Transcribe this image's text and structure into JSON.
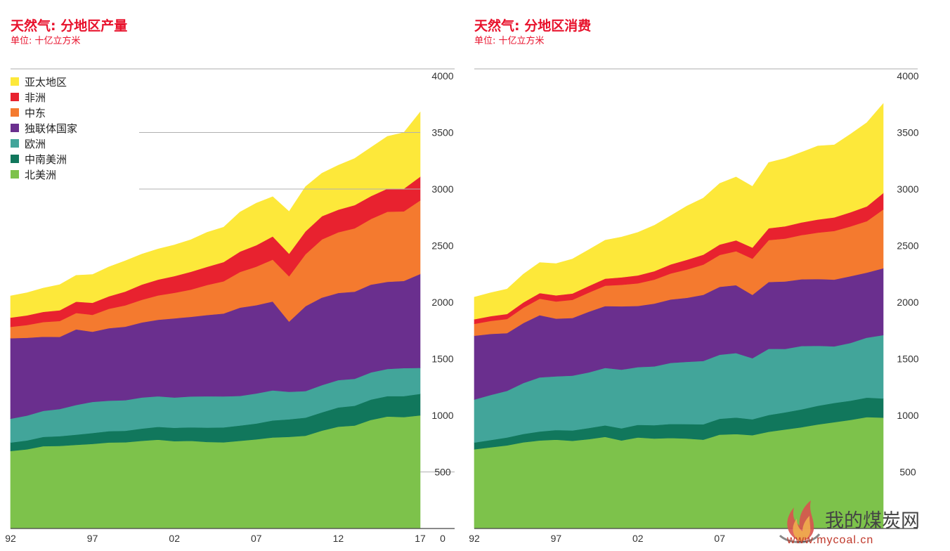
{
  "colors": {
    "亚太地区": "#fde83a",
    "非洲": "#e8222f",
    "中东": "#f47a2f",
    "独联体国家": "#6a2f8e",
    "欧洲": "#42a59a",
    "中南美洲": "#11775c",
    "北美洲": "#7dc24b"
  },
  "watermark": {
    "name": "我的煤炭网",
    "url": "www.mycoal.cn"
  },
  "chart_data": [
    {
      "type": "area",
      "title": "天然气: 分地区产量",
      "subtitle": "单位: 十亿立方米",
      "stacked": true,
      "x": [
        1992,
        1993,
        1994,
        1995,
        1996,
        1997,
        1998,
        1999,
        2000,
        2001,
        2002,
        2003,
        2004,
        2005,
        2006,
        2007,
        2008,
        2009,
        2010,
        2011,
        2012,
        2013,
        2014,
        2015,
        2016,
        2017
      ],
      "x_tick_labels": [
        "92",
        "97",
        "02",
        "07",
        "12",
        "17"
      ],
      "x_tick_years": [
        1992,
        1997,
        2002,
        2007,
        2012,
        2017
      ],
      "ylim": [
        0,
        4000
      ],
      "y_ticks": [
        0,
        500,
        1000,
        1500,
        2000,
        2500,
        3000,
        3500,
        4000
      ],
      "legend": [
        "亚太地区",
        "非洲",
        "中东",
        "独联体国家",
        "欧洲",
        "中南美洲",
        "北美洲"
      ],
      "legend_position": "top-left",
      "series": [
        {
          "name": "北美洲",
          "values": [
            685,
            700,
            728,
            730,
            740,
            748,
            760,
            762,
            775,
            785,
            772,
            775,
            765,
            762,
            775,
            788,
            805,
            810,
            820,
            865,
            900,
            910,
            960,
            990,
            985,
            1000
          ]
        },
        {
          "name": "中南美洲",
          "values": [
            75,
            78,
            82,
            86,
            90,
            96,
            100,
            102,
            108,
            114,
            118,
            120,
            126,
            132,
            135,
            140,
            150,
            155,
            160,
            162,
            170,
            175,
            180,
            180,
            185,
            190
          ]
        },
        {
          "name": "欧洲",
          "values": [
            210,
            220,
            230,
            240,
            262,
            275,
            270,
            270,
            275,
            270,
            268,
            272,
            278,
            274,
            262,
            266,
            266,
            244,
            235,
            240,
            242,
            238,
            240,
            240,
            248,
            230
          ]
        },
        {
          "name": "独联体国家",
          "values": [
            712,
            688,
            655,
            638,
            668,
            620,
            640,
            650,
            663,
            676,
            700,
            704,
            718,
            732,
            780,
            780,
            786,
            620,
            750,
            774,
            770,
            770,
            776,
            770,
            770,
            830
          ]
        },
        {
          "name": "中东",
          "values": [
            100,
            112,
            130,
            140,
            145,
            150,
            172,
            188,
            200,
            215,
            225,
            240,
            266,
            285,
            315,
            340,
            370,
            400,
            460,
            514,
            536,
            560,
            580,
            620,
            615,
            650
          ]
        },
        {
          "name": "非洲",
          "values": [
            82,
            86,
            90,
            95,
            100,
            106,
            110,
            122,
            134,
            140,
            148,
            158,
            160,
            170,
            180,
            190,
            205,
            200,
            202,
            205,
            200,
            205,
            202,
            204,
            200,
            210
          ]
        },
        {
          "name": "亚太地区",
          "values": [
            192,
            200,
            210,
            226,
            232,
            250,
            260,
            272,
            270,
            270,
            275,
            283,
            305,
            308,
            350,
            372,
            350,
            372,
            394,
            380,
            392,
            412,
            430,
            462,
            496,
            570
          ]
        }
      ]
    },
    {
      "type": "area",
      "title": "天然气: 分地区消费",
      "subtitle": "单位: 十亿立方米",
      "stacked": true,
      "x": [
        1992,
        1993,
        1994,
        1995,
        1996,
        1997,
        1998,
        1999,
        2000,
        2001,
        2002,
        2003,
        2004,
        2005,
        2006,
        2007,
        2008,
        2009,
        2010,
        2011,
        2012,
        2013,
        2014,
        2015,
        2016,
        2017
      ],
      "x_tick_labels": [
        "92",
        "97",
        "02",
        "07",
        "12"
      ],
      "x_tick_years": [
        1992,
        1997,
        2002,
        2007,
        2012
      ],
      "ylim": [
        0,
        4000
      ],
      "y_ticks": [
        500,
        1000,
        1500,
        2000,
        2500,
        3000,
        3500,
        4000
      ],
      "series": [
        {
          "name": "北美洲",
          "values": [
            700,
            718,
            735,
            762,
            778,
            785,
            775,
            790,
            810,
            778,
            805,
            795,
            800,
            795,
            785,
            830,
            835,
            825,
            855,
            875,
            895,
            920,
            940,
            960,
            985,
            980
          ]
        },
        {
          "name": "中南美洲",
          "values": [
            60,
            64,
            70,
            74,
            80,
            86,
            92,
            98,
            102,
            108,
            112,
            118,
            124,
            128,
            136,
            140,
            146,
            140,
            148,
            152,
            158,
            165,
            170,
            170,
            172,
            170
          ]
        },
        {
          "name": "欧洲",
          "values": [
            380,
            398,
            412,
            450,
            478,
            474,
            484,
            492,
            508,
            518,
            510,
            520,
            540,
            550,
            560,
            566,
            570,
            540,
            586,
            560,
            560,
            530,
            500,
            510,
            530,
            560
          ]
        },
        {
          "name": "独联体国家",
          "values": [
            564,
            540,
            510,
            530,
            550,
            510,
            510,
            536,
            546,
            560,
            540,
            555,
            560,
            566,
            585,
            600,
            600,
            560,
            590,
            596,
            590,
            590,
            590,
            590,
            575,
            590
          ]
        },
        {
          "name": "中东",
          "values": [
            105,
            115,
            125,
            136,
            145,
            152,
            160,
            170,
            180,
            190,
            200,
            212,
            230,
            250,
            266,
            282,
            300,
            320,
            370,
            380,
            390,
            410,
            430,
            440,
            455,
            520
          ]
        },
        {
          "name": "非洲",
          "values": [
            40,
            42,
            44,
            46,
            50,
            54,
            56,
            58,
            62,
            66,
            70,
            74,
            80,
            86,
            88,
            92,
            96,
            98,
            105,
            108,
            112,
            116,
            120,
            125,
            130,
            145
          ]
        },
        {
          "name": "亚太地区",
          "values": [
            196,
            206,
            220,
            250,
            270,
            280,
            305,
            320,
            340,
            356,
            380,
            405,
            430,
            475,
            500,
            540,
            560,
            540,
            580,
            600,
            620,
            650,
            640,
            690,
            740,
            790
          ]
        }
      ]
    }
  ]
}
